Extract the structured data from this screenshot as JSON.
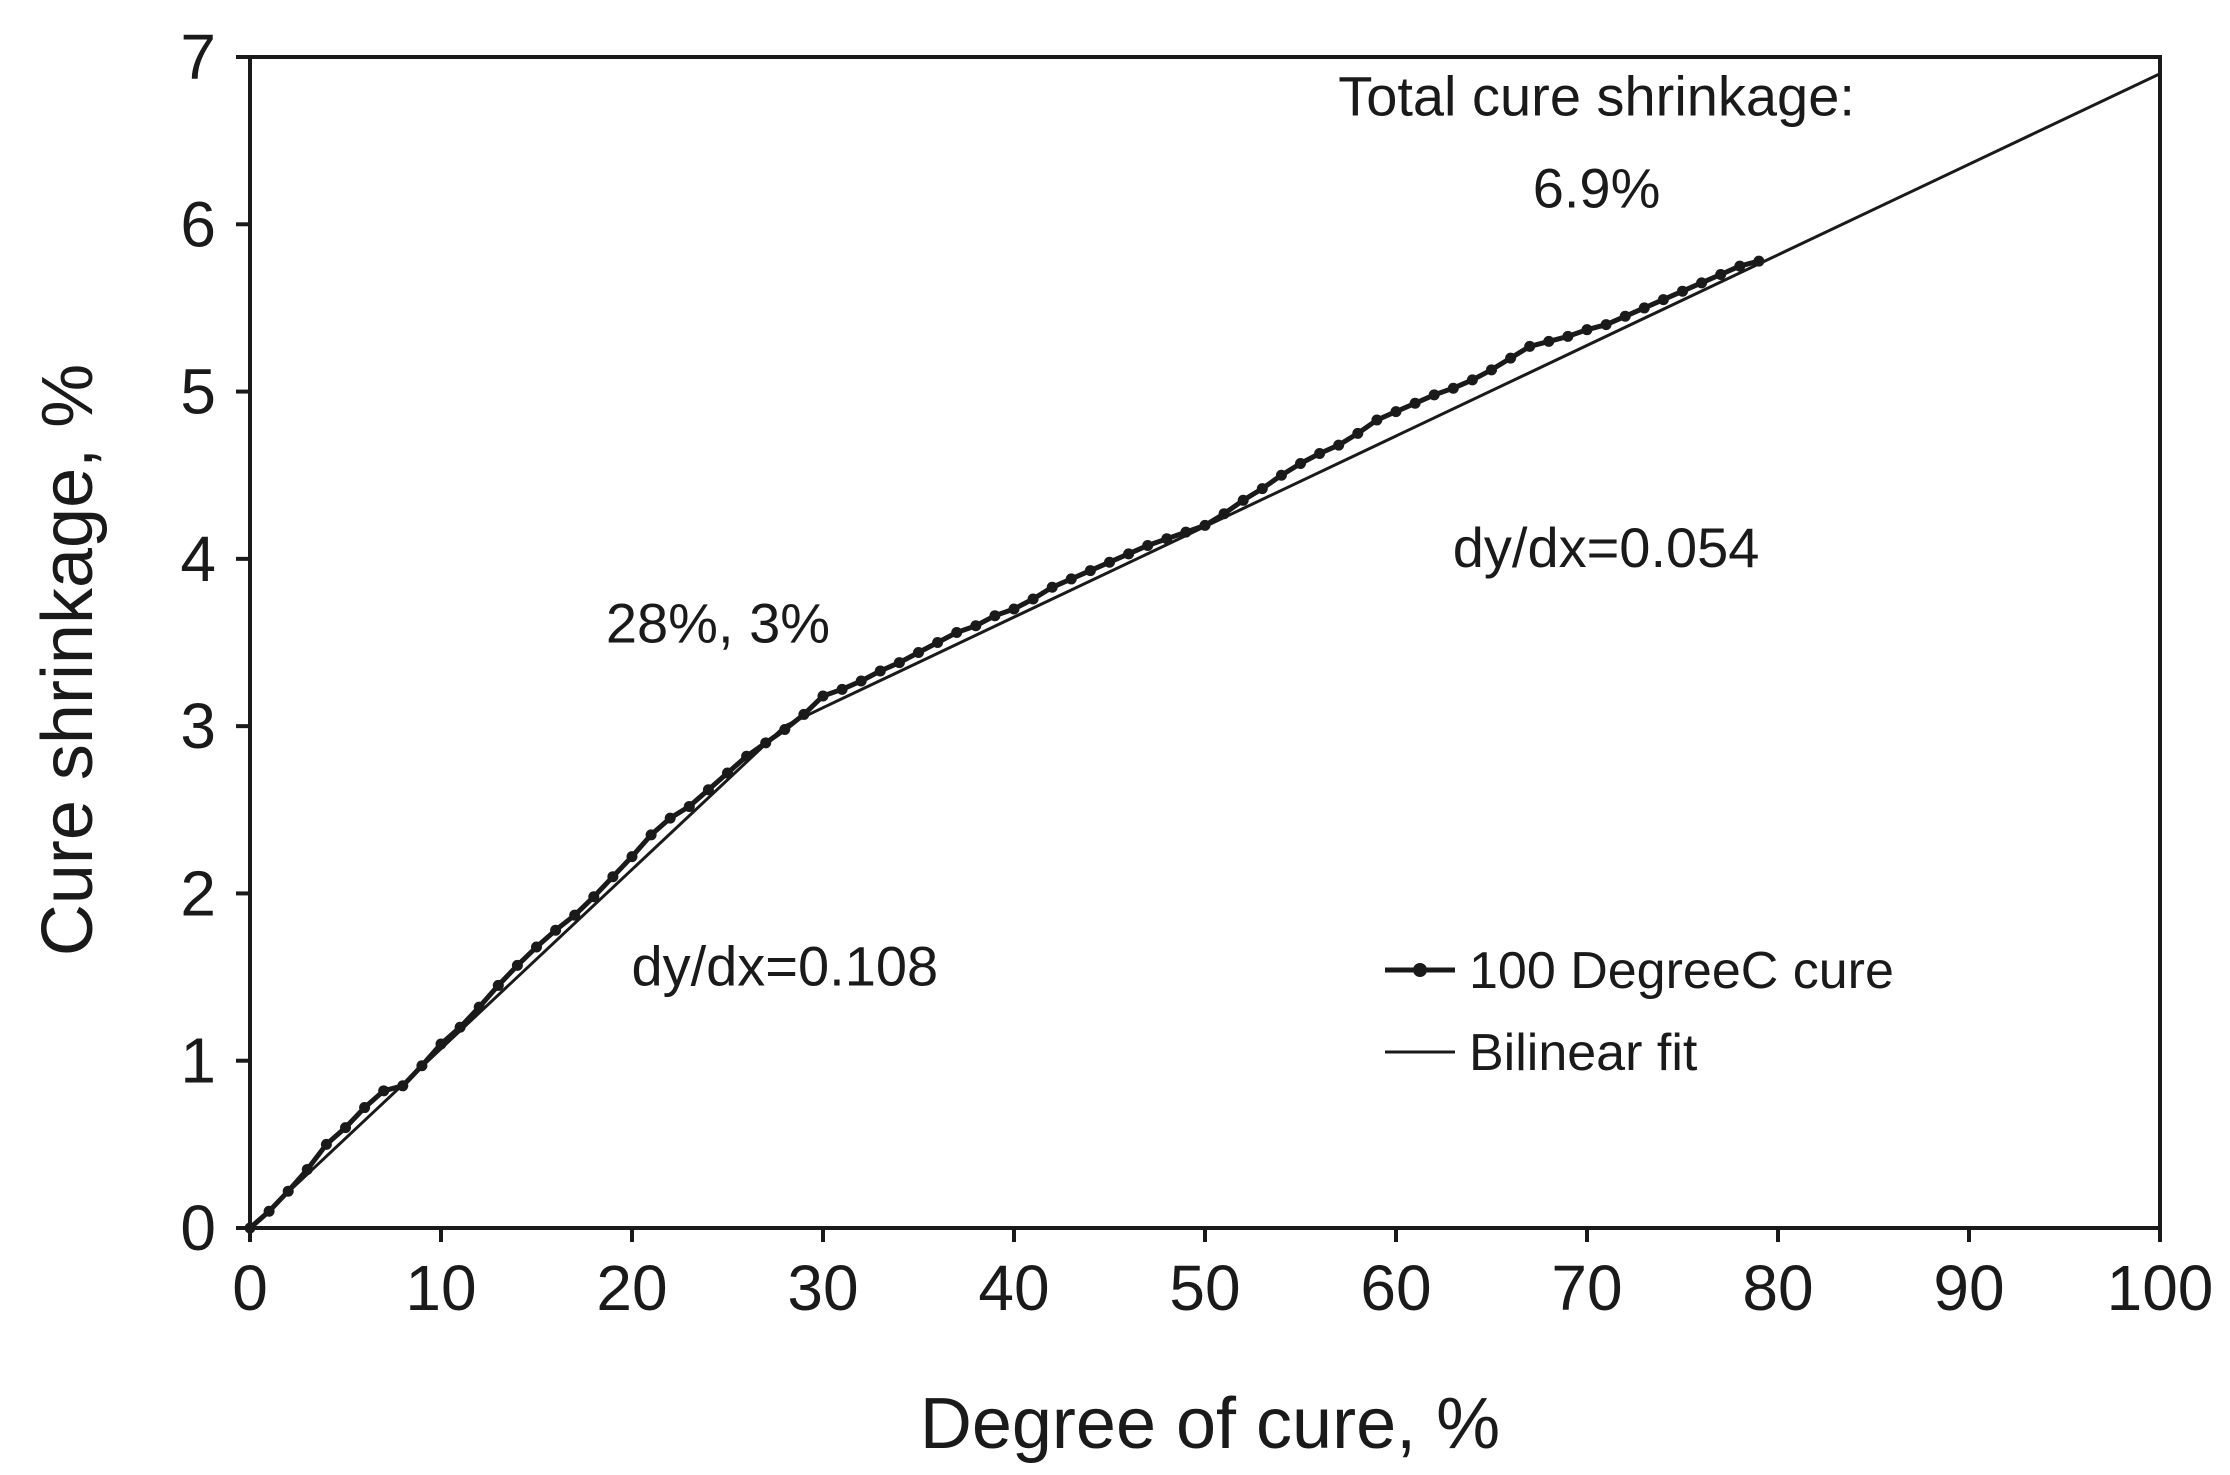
{
  "chart_data": {
    "type": "line",
    "title": "",
    "xlabel": "Degree of cure, %",
    "ylabel": "Cure shrinkage, %",
    "xlim": [
      0,
      100
    ],
    "ylim": [
      0,
      7
    ],
    "x_ticks": [
      "0",
      "10",
      "20",
      "30",
      "40",
      "50",
      "60",
      "70",
      "80",
      "90",
      "100"
    ],
    "y_ticks": [
      "0",
      "1",
      "2",
      "3",
      "4",
      "5",
      "6",
      "7"
    ],
    "grid": false,
    "legend_position": "bottom-right",
    "series": [
      {
        "name": "100 DegreeC cure",
        "style": "line-with-markers",
        "color": "#1a1a1a",
        "x": [
          0,
          1,
          2,
          3,
          4,
          5,
          6,
          7,
          8,
          9,
          10,
          11,
          12,
          13,
          14,
          15,
          16,
          17,
          18,
          19,
          20,
          21,
          22,
          23,
          24,
          25,
          26,
          27,
          28,
          29,
          30,
          31,
          32,
          33,
          34,
          35,
          36,
          37,
          38,
          39,
          40,
          41,
          42,
          43,
          44,
          45,
          46,
          47,
          48,
          49,
          50,
          51,
          52,
          53,
          54,
          55,
          56,
          57,
          58,
          59,
          60,
          61,
          62,
          63,
          64,
          65,
          66,
          67,
          68,
          69,
          70,
          71,
          72,
          73,
          74,
          75,
          76,
          77,
          78,
          79
        ],
        "y": [
          0.0,
          0.1,
          0.22,
          0.35,
          0.5,
          0.6,
          0.72,
          0.82,
          0.85,
          0.97,
          1.1,
          1.2,
          1.32,
          1.45,
          1.57,
          1.68,
          1.78,
          1.87,
          1.98,
          2.1,
          2.22,
          2.35,
          2.45,
          2.52,
          2.62,
          2.72,
          2.82,
          2.9,
          2.98,
          3.07,
          3.18,
          3.22,
          3.27,
          3.33,
          3.38,
          3.44,
          3.5,
          3.56,
          3.6,
          3.66,
          3.7,
          3.76,
          3.83,
          3.88,
          3.93,
          3.98,
          4.03,
          4.08,
          4.12,
          4.16,
          4.2,
          4.27,
          4.35,
          4.42,
          4.5,
          4.57,
          4.63,
          4.68,
          4.75,
          4.83,
          4.88,
          4.93,
          4.98,
          5.02,
          5.07,
          5.13,
          5.2,
          5.27,
          5.3,
          5.33,
          5.37,
          5.4,
          5.45,
          5.5,
          5.55,
          5.6,
          5.65,
          5.7,
          5.75,
          5.78
        ]
      },
      {
        "name": "Bilinear fit",
        "style": "line",
        "color": "#1a1a1a",
        "x": [
          0,
          28,
          30,
          100
        ],
        "y": [
          0,
          3.0,
          3.11,
          6.9
        ]
      }
    ],
    "annotations": [
      {
        "text": "Total cure shrinkage:",
        "x": 70.5,
        "y": 6.65
      },
      {
        "text": "6.9%",
        "x": 70.5,
        "y": 6.1
      },
      {
        "text": "dy/dx=0.054",
        "x": 71,
        "y": 3.95
      },
      {
        "text": "28%, 3%",
        "x": 24.5,
        "y": 3.5
      },
      {
        "text": "dy/dx=0.108",
        "x": 28,
        "y": 1.45
      }
    ]
  }
}
